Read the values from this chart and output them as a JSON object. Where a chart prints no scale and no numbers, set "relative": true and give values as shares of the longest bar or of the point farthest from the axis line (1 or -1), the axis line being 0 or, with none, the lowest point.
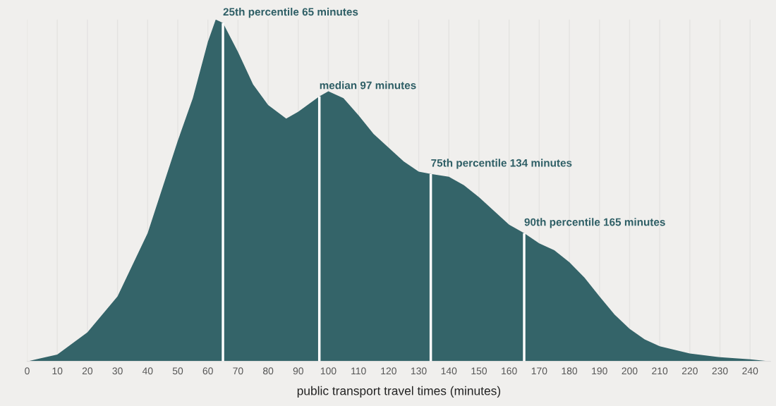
{
  "chart_data": {
    "type": "area",
    "relative": true,
    "xlabel": "public transport travel times (minutes)",
    "x": [
      0,
      10,
      20,
      30,
      40,
      50,
      55,
      60,
      62.6,
      65,
      70,
      75,
      80,
      86,
      90,
      97,
      100,
      105,
      110,
      115,
      120,
      125,
      130,
      134,
      140,
      145,
      150,
      155,
      160,
      165,
      170,
      175,
      180,
      185,
      190,
      195,
      200,
      205,
      210,
      220,
      230,
      240,
      246.8
    ],
    "series": [
      {
        "color": "#346469",
        "values": [
          0,
          0.02,
          0.085,
          0.19,
          0.375,
          0.645,
          0.77,
          0.935,
          1.0,
          0.99,
          0.905,
          0.81,
          0.75,
          0.71,
          0.73,
          0.775,
          0.79,
          0.77,
          0.72,
          0.665,
          0.625,
          0.585,
          0.555,
          0.548,
          0.54,
          0.515,
          0.48,
          0.44,
          0.4,
          0.375,
          0.345,
          0.325,
          0.29,
          0.245,
          0.19,
          0.137,
          0.095,
          0.064,
          0.044,
          0.023,
          0.012,
          0.006,
          0
        ]
      }
    ],
    "xlim": [
      0,
      246.8
    ],
    "xticks": [
      0,
      10,
      20,
      30,
      40,
      50,
      60,
      70,
      80,
      90,
      100,
      110,
      120,
      130,
      140,
      150,
      160,
      170,
      180,
      190,
      200,
      210,
      220,
      230,
      240
    ],
    "grid": "x",
    "ref_lines": [
      {
        "axis": "x",
        "value": 65,
        "label": "25th percentile 65 minutes",
        "color": "#ffffff"
      },
      {
        "axis": "x",
        "value": 97,
        "label": "median 97 minutes",
        "color": "#ffffff"
      },
      {
        "axis": "x",
        "value": 134,
        "label": "75th percentile 134 minutes",
        "color": "#ffffff"
      },
      {
        "axis": "x",
        "value": 165,
        "label": "90th percentile 165 minutes",
        "color": "#ffffff"
      }
    ]
  }
}
